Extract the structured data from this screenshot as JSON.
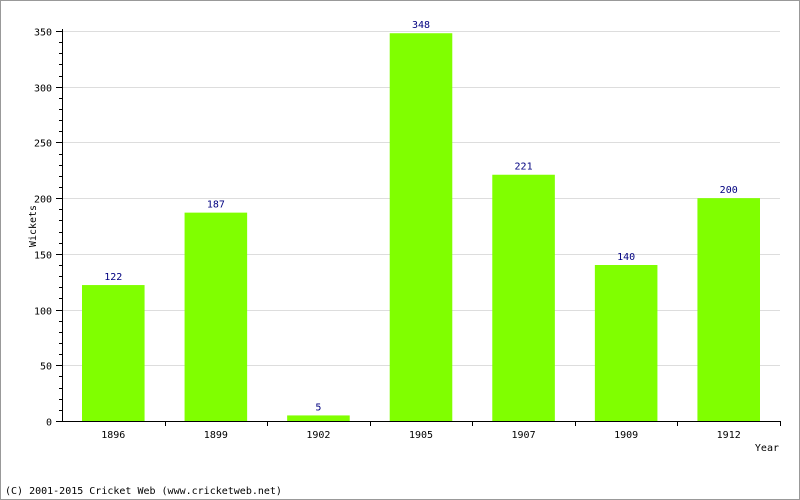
{
  "chart_data": {
    "type": "bar",
    "categories": [
      "1896",
      "1899",
      "1902",
      "1905",
      "1907",
      "1909",
      "1912"
    ],
    "values": [
      122,
      187,
      5,
      348,
      221,
      140,
      200
    ],
    "title": "",
    "xlabel": "Year",
    "ylabel": "Wickets",
    "ylim": [
      0,
      350
    ],
    "yticks": [
      0,
      50,
      100,
      150,
      200,
      250,
      300,
      350
    ],
    "grid": true,
    "bar_color": "#80ff00",
    "label_color": "#000080"
  },
  "footer": {
    "credit": "(C) 2001-2015 Cricket Web (www.cricketweb.net)"
  }
}
